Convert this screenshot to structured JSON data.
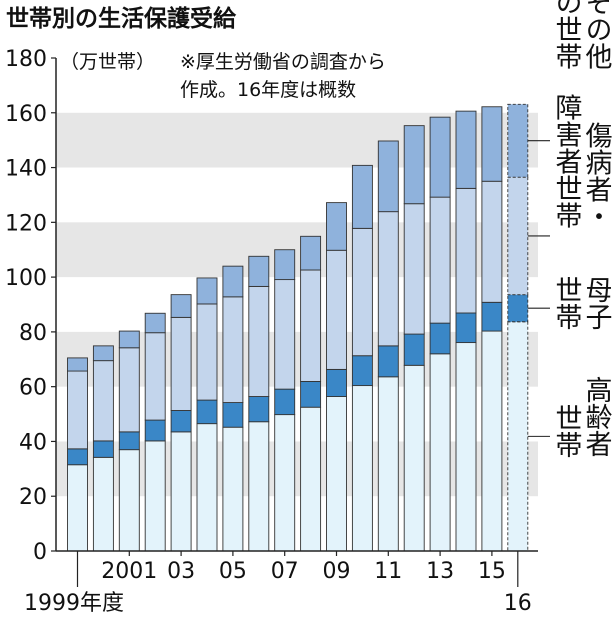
{
  "chart_data": {
    "type": "bar",
    "stacked": true,
    "title": "世帯別の生活保護受給",
    "unit_label": "（万世帯）",
    "note_lines": [
      "※厚生労働省の調査から",
      "作成。16年度は概数"
    ],
    "ylim": [
      0,
      180
    ],
    "y_ticks": [
      0,
      20,
      40,
      60,
      80,
      100,
      120,
      140,
      160,
      180
    ],
    "x_tick_labels": [
      {
        "index": 0,
        "text": "1999年度"
      },
      {
        "index": 2,
        "text": "2001"
      },
      {
        "index": 4,
        "text": "03"
      },
      {
        "index": 6,
        "text": "05"
      },
      {
        "index": 8,
        "text": "07"
      },
      {
        "index": 10,
        "text": "09"
      },
      {
        "index": 12,
        "text": "11"
      },
      {
        "index": 14,
        "text": "13"
      },
      {
        "index": 16,
        "text": "15"
      },
      {
        "index": 17,
        "text": "16"
      }
    ],
    "categories": [
      "1999",
      "2000",
      "2001",
      "2002",
      "2003",
      "2004",
      "2005",
      "2006",
      "2007",
      "2008",
      "2009",
      "2010",
      "2011",
      "2012",
      "2013",
      "2014",
      "2015",
      "2016"
    ],
    "series": [
      {
        "name": "高齢者世帯",
        "color": "#e3f3fb",
        "values": [
          31.5,
          34.2,
          37.0,
          40.2,
          43.5,
          46.5,
          45.2,
          47.2,
          49.8,
          52.5,
          56.4,
          60.4,
          63.6,
          67.8,
          72.0,
          76.1,
          80.3,
          83.7
        ]
      },
      {
        "name": "母子世帯",
        "color": "#3a87c7",
        "values": [
          5.8,
          6.0,
          6.5,
          7.6,
          7.8,
          8.6,
          9.0,
          9.2,
          9.3,
          9.4,
          9.9,
          10.9,
          11.3,
          11.4,
          11.2,
          10.8,
          10.5,
          9.9
        ]
      },
      {
        "name": "傷病者・障害者世帯",
        "color": "#c3d5ec",
        "values": [
          28.4,
          29.3,
          30.7,
          31.9,
          34.0,
          35.1,
          38.6,
          40.2,
          40.0,
          40.7,
          43.5,
          46.5,
          49.0,
          47.6,
          46.0,
          45.5,
          44.2,
          42.9
        ]
      },
      {
        "name": "その他の世帯",
        "color": "#8fb2dc",
        "values": [
          4.8,
          5.4,
          6.1,
          7.1,
          8.3,
          9.5,
          11.2,
          11.0,
          10.9,
          12.3,
          17.4,
          23.0,
          25.8,
          28.5,
          29.2,
          28.2,
          27.2,
          26.6
        ]
      }
    ],
    "estimate_index": 17,
    "series_labels": [
      {
        "series": 3,
        "columns": [
          "その他",
          "の世帯"
        ]
      },
      {
        "series": 2,
        "columns": [
          "傷病者・",
          "障害者世帯"
        ]
      },
      {
        "series": 1,
        "columns": [
          "母子",
          "世帯"
        ]
      },
      {
        "series": 0,
        "columns": [
          "高齢者",
          "世帯"
        ]
      }
    ]
  }
}
